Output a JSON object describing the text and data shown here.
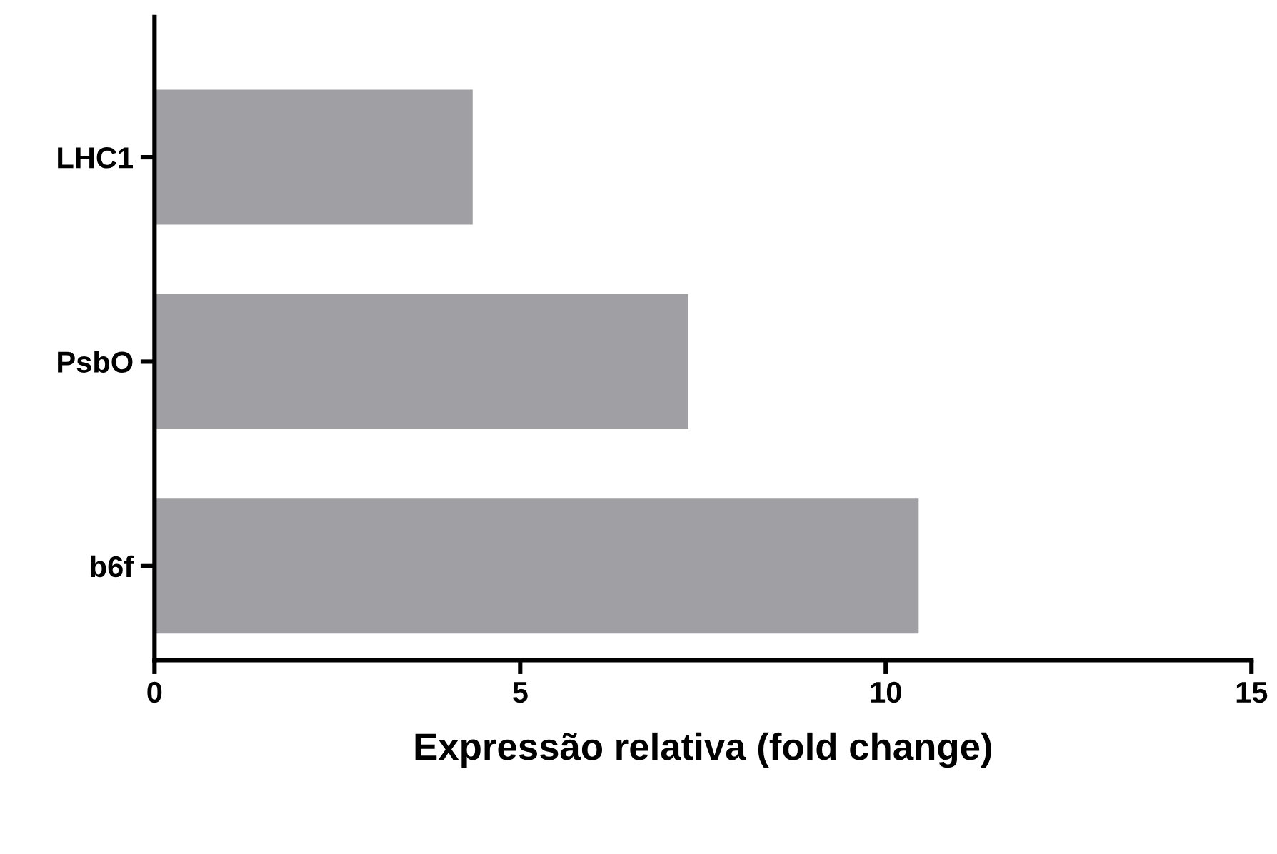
{
  "chart_data": {
    "type": "bar",
    "orientation": "horizontal",
    "xlabel": "Expressão relativa (fold change)",
    "categories": [
      "LHC1",
      "PsbO",
      "b6f"
    ],
    "values": [
      4.35,
      7.3,
      10.45
    ],
    "color": "#a0a0a4",
    "xlim": [
      0,
      15
    ],
    "xticks": [
      0,
      5,
      10,
      15
    ],
    "grid": false
  }
}
